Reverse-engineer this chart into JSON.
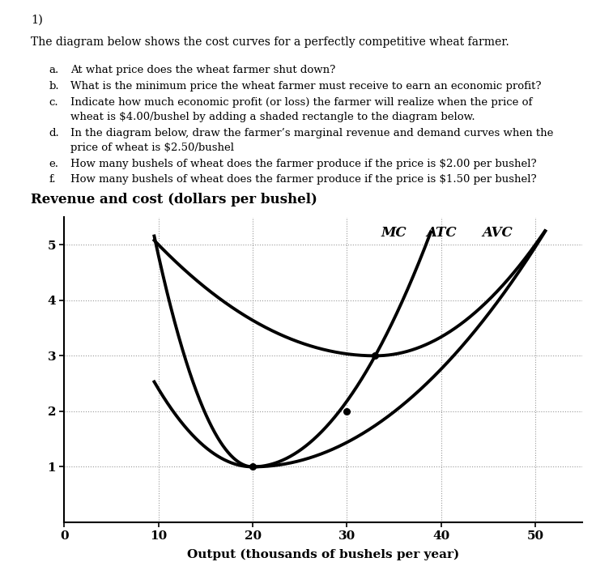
{
  "title_ylabel": "Revenue and cost (dollars per bushel)",
  "xlabel": "Output (thousands of bushels per year)",
  "question_number": "1)",
  "intro_text": "The diagram below shows the cost curves for a perfectly competitive wheat farmer.",
  "q_a": "At what price does the wheat farmer shut down?",
  "q_b": "What is the minimum price the wheat farmer must receive to earn an economic profit?",
  "q_c1": "Indicate how much economic profit (or loss) the farmer will realize when the price of",
  "q_c2": "wheat is $4.00/bushel by adding a shaded rectangle to the diagram below.",
  "q_d1": "In the diagram below, draw the farmer’s marginal revenue and demand curves when the",
  "q_d2": "price of wheat is $2.50/bushel",
  "q_e": "How many bushels of wheat does the farmer produce if the price is $2.00 per bushel?",
  "q_f": "How many bushels of wheat does the farmer produce if the price is $1.50 per bushel?",
  "curve_color": "#000000",
  "dot_color": "#000000",
  "background_color": "#ffffff",
  "xlim": [
    0,
    55
  ],
  "ylim": [
    0,
    5.5
  ],
  "xticks": [
    0,
    10,
    20,
    30,
    40,
    50
  ],
  "yticks": [
    1,
    2,
    3,
    4,
    5
  ],
  "grid_color": "#999999",
  "label_MC": "MC",
  "label_ATC": "ATC",
  "label_AVC": "AVC",
  "dot_points": [
    [
      20,
      1.0
    ],
    [
      30,
      2.0
    ],
    [
      33,
      3.0
    ]
  ]
}
